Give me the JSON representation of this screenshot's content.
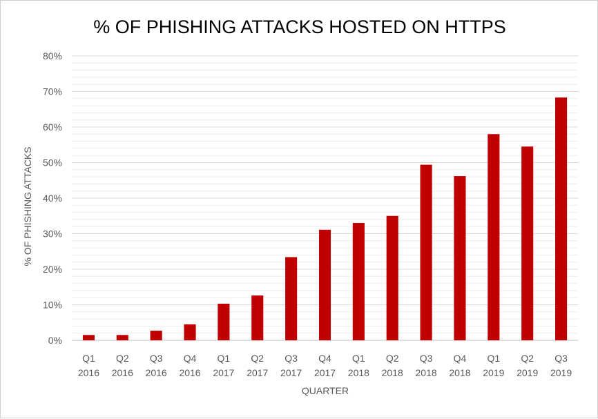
{
  "chart_data": {
    "type": "bar",
    "title": "% OF PHISHING ATTACKS HOSTED ON HTTPS",
    "xlabel": "QUARTER",
    "ylabel": "% OF PHISHING ATTACKS",
    "ylim": [
      0,
      80
    ],
    "y_ticks": [
      "0%",
      "10%",
      "20%",
      "30%",
      "40%",
      "50%",
      "60%",
      "70%",
      "80%"
    ],
    "grid": true,
    "legend": "none",
    "bar_color": "#C00000",
    "categories": [
      [
        "Q1",
        "2016"
      ],
      [
        "Q2",
        "2016"
      ],
      [
        "Q3",
        "2016"
      ],
      [
        "Q4",
        "2016"
      ],
      [
        "Q1",
        "2017"
      ],
      [
        "Q2",
        "2017"
      ],
      [
        "Q3",
        "2017"
      ],
      [
        "Q4",
        "2017"
      ],
      [
        "Q1",
        "2018"
      ],
      [
        "Q2",
        "2018"
      ],
      [
        "Q3",
        "2018"
      ],
      [
        "Q4",
        "2018"
      ],
      [
        "Q1",
        "2019"
      ],
      [
        "Q2",
        "2019"
      ],
      [
        "Q3",
        "2019"
      ]
    ],
    "values": [
      1.5,
      1.5,
      2.7,
      4.5,
      10.3,
      12.6,
      23.4,
      31.1,
      33.0,
      35.0,
      49.4,
      46.2,
      58.0,
      54.5,
      68.3
    ]
  }
}
